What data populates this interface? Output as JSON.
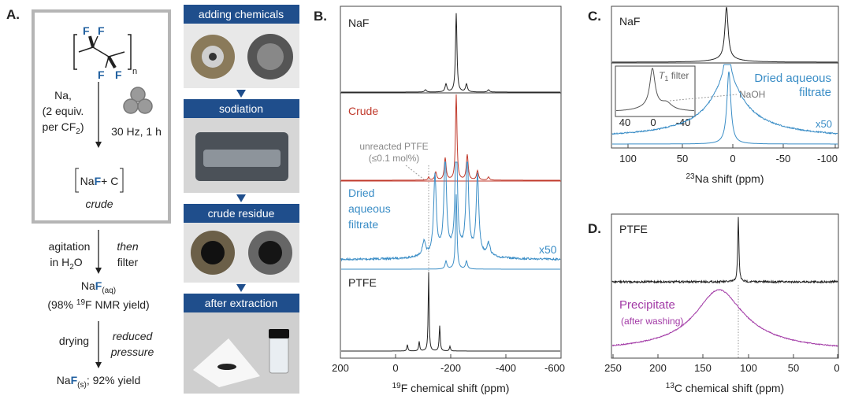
{
  "panel_a": {
    "label": "A.",
    "monomer_atoms": [
      "F",
      "F",
      "F",
      "F"
    ],
    "repeat": "n",
    "reagent": {
      "line1": "Na,",
      "line2": "(2 equiv.",
      "line3a": "per CF",
      "line3sub": "2",
      "line3b": ")"
    },
    "milling": "30 Hz, 1 h",
    "product": {
      "na": "Na",
      "f": "F",
      "rest": "+  C"
    },
    "product_note": "crude",
    "step2": {
      "left1": "agitation",
      "left2a": "in H",
      "left2sub": "2",
      "left2b": "O",
      "right1": "then",
      "right2": "filter"
    },
    "aq": {
      "na": "Na",
      "f": "F",
      "sub": "(aq)",
      "yield_a": "(98% ",
      "yield_sup": "19",
      "yield_b": "F NMR yield)"
    },
    "step3": {
      "left": "drying",
      "right1": "reduced",
      "right2": "pressure"
    },
    "solid": {
      "na": "Na",
      "f": "F",
      "sub": "(s)",
      "rest": "; 92% yield"
    }
  },
  "photos": [
    "adding chemicals",
    "sodiation",
    "crude residue",
    "after extraction"
  ],
  "panel_b": {
    "label": "B.",
    "naf": "NaF",
    "crude": "Crude",
    "filtrate": [
      "Dried",
      "aqueous",
      "filtrate"
    ],
    "annotation": [
      "unreacted PTFE",
      "(≤0.1 mol%)"
    ],
    "scale": "x50",
    "ptfe": "PTFE",
    "xticks": [
      "200",
      "0",
      "-200",
      "-400",
      "-600"
    ],
    "xlabel_sup": "19",
    "xlabel": "F chemical shift (ppm)"
  },
  "panel_c": {
    "label": "C.",
    "naf": "NaF",
    "inset_t": "T",
    "inset_sub": "1",
    "inset_rest": " filter",
    "naoh": "NaOH",
    "filtrate": [
      "Dried aqueous",
      "filtrate"
    ],
    "scale": "x50",
    "inset_ticks": [
      "40",
      "0",
      "-40"
    ],
    "xticks": [
      "100",
      "50",
      "0",
      "-50",
      "-100"
    ],
    "xlabel_sup": "23",
    "xlabel": "Na  shift (ppm)"
  },
  "panel_d": {
    "label": "D.",
    "ptfe": "PTFE",
    "precipitate": "Precipitate",
    "note": "(after washing)",
    "xticks": [
      "250",
      "200",
      "150",
      "100",
      "50",
      "0"
    ],
    "xlabel_sup": "13",
    "xlabel": "C chemical shift (ppm)"
  }
}
